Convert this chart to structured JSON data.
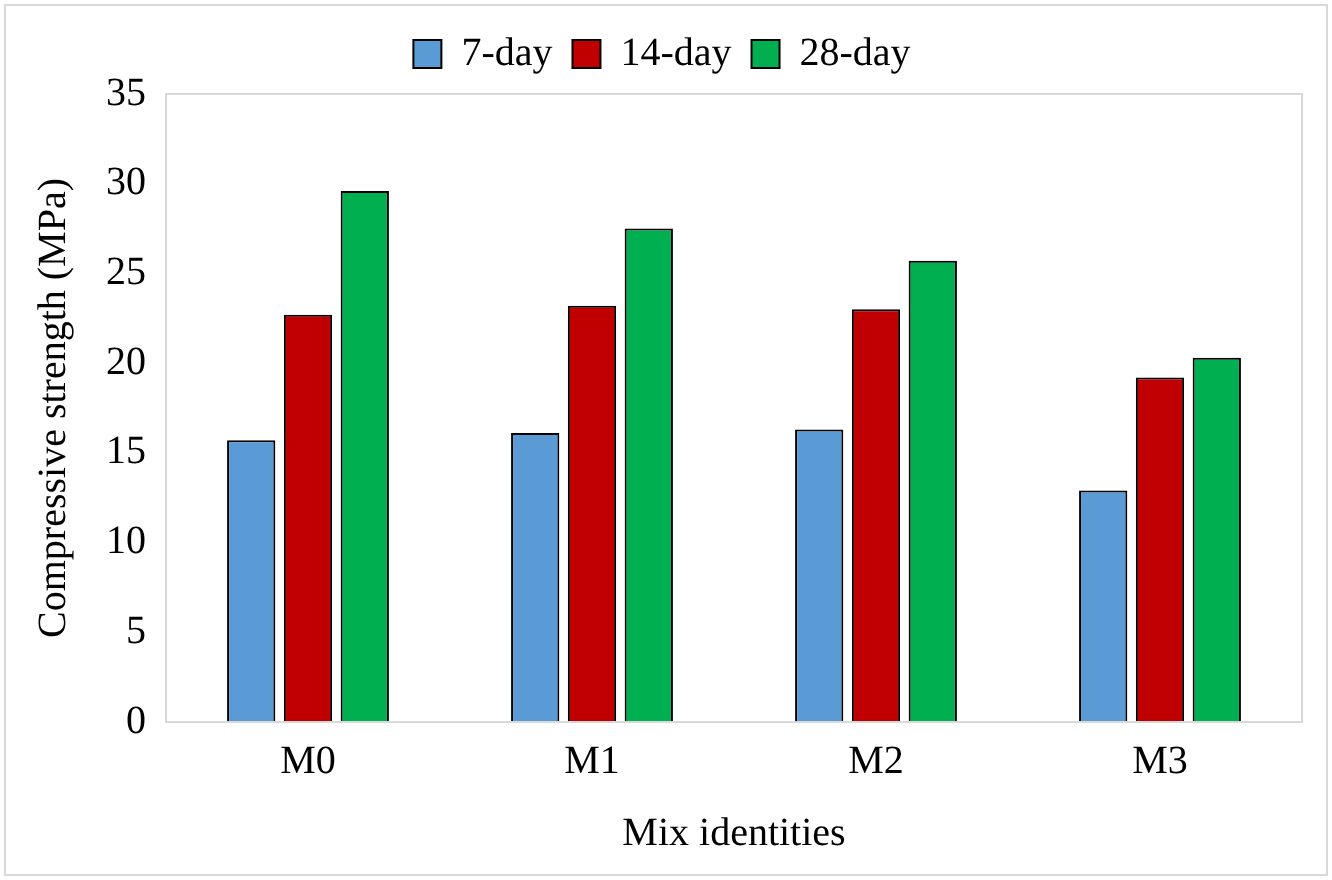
{
  "chart_data": {
    "type": "bar",
    "xlabel": "Mix identities",
    "ylabel": "Compressive strength (MPa)",
    "categories": [
      "M0",
      "M1",
      "M2",
      "M3"
    ],
    "series": [
      {
        "name": "7-day",
        "color": "#5b9bd5",
        "values": [
          15.7,
          16.1,
          16.3,
          12.9
        ]
      },
      {
        "name": "14-day",
        "color": "#c00000",
        "values": [
          22.7,
          23.2,
          23.0,
          19.2
        ]
      },
      {
        "name": "28-day",
        "color": "#00b050",
        "values": [
          29.6,
          27.5,
          25.7,
          20.3
        ]
      }
    ],
    "ylim": [
      0,
      35
    ],
    "yticks": [
      0,
      5,
      10,
      15,
      20,
      25,
      30,
      35
    ],
    "grid": false,
    "legend": "top"
  }
}
